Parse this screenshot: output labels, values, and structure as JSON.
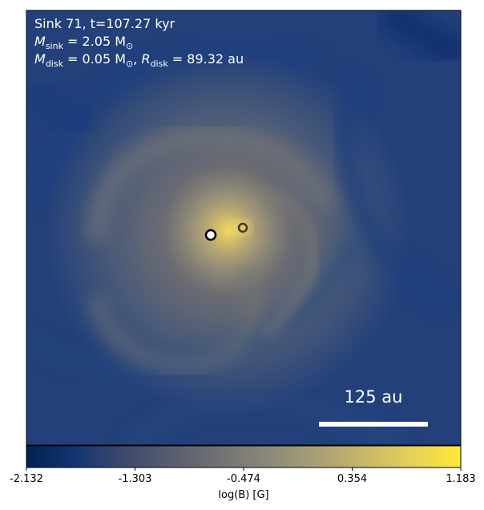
{
  "annotation": {
    "line1": "Sink 71, t=107.27 kyr",
    "line2_symbol": "M",
    "line2_sub": "sink",
    "line2_value": " = 2.05 M",
    "line2_sun": "⊙",
    "line3_symbol": "M",
    "line3_sub": "disk",
    "line3_value": " = 0.05 M",
    "line3_sun": "⊙",
    "line3_sep": ", ",
    "line3_rsymbol": "R",
    "line3_rsub": "disk",
    "line3_rvalue": " = 89.32 au"
  },
  "scale_bar": {
    "label": "125 au"
  },
  "colorbar": {
    "label": "log(B) [G]",
    "ticks": [
      "-2.132",
      "-1.303",
      "-0.474",
      "0.354",
      "1.183"
    ],
    "colormap": "cividis",
    "colors": [
      "#00224e",
      "#123570",
      "#3b496c",
      "#575d6d",
      "#707173",
      "#8a8779",
      "#a69d75",
      "#c4b56c",
      "#e4cf5b",
      "#fee838"
    ]
  },
  "sinks": [
    {
      "fill": "#ffffff",
      "stroke": "#000000"
    },
    {
      "fill": "#e8c84a",
      "stroke": "#3a3a3a"
    }
  ]
}
